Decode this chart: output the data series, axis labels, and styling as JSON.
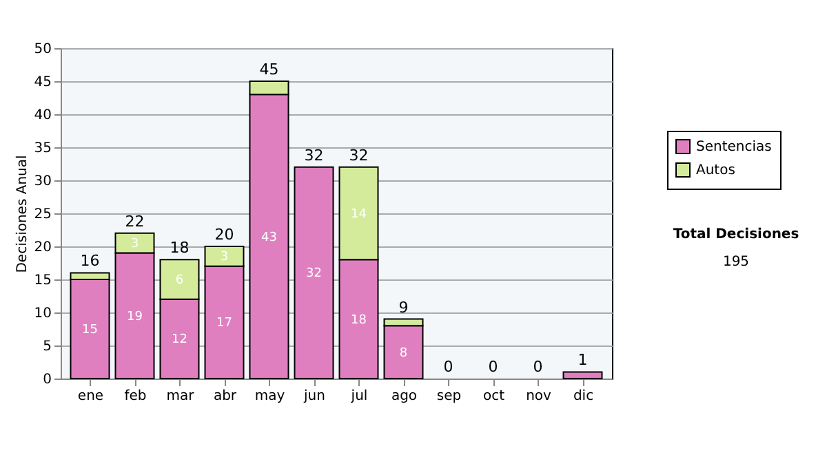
{
  "chart_data": {
    "type": "bar",
    "stacked": true,
    "ylabel": "Decisiones Anual",
    "categories": [
      "ene",
      "feb",
      "mar",
      "abr",
      "may",
      "jun",
      "jul",
      "ago",
      "sep",
      "oct",
      "nov",
      "dic"
    ],
    "series": [
      {
        "name": "Sentencias",
        "color": "#e07fc0",
        "values": [
          15,
          19,
          12,
          17,
          43,
          32,
          18,
          8,
          0,
          0,
          0,
          1
        ],
        "value_labels": [
          "15",
          "19",
          "12",
          "17",
          "43",
          "32",
          "18",
          "8",
          null,
          null,
          null,
          null
        ]
      },
      {
        "name": "Autos",
        "color": "#d4eb9c",
        "values": [
          1,
          3,
          6,
          3,
          2,
          0,
          14,
          1,
          0,
          0,
          0,
          0
        ],
        "value_labels": [
          null,
          "3",
          "6",
          "3",
          null,
          null,
          "14",
          null,
          null,
          null,
          null,
          null
        ]
      }
    ],
    "totals": [
      "16",
      "22",
      "18",
      "20",
      "45",
      "32",
      "32",
      "9",
      "0",
      "0",
      "0",
      "1"
    ],
    "ylim": [
      0,
      50
    ],
    "yticks": [
      0,
      5,
      10,
      15,
      20,
      25,
      30,
      35,
      40,
      45,
      50
    ],
    "grid": "y",
    "legend": "right",
    "annotations": [
      "Total Decisiones",
      "195"
    ]
  }
}
